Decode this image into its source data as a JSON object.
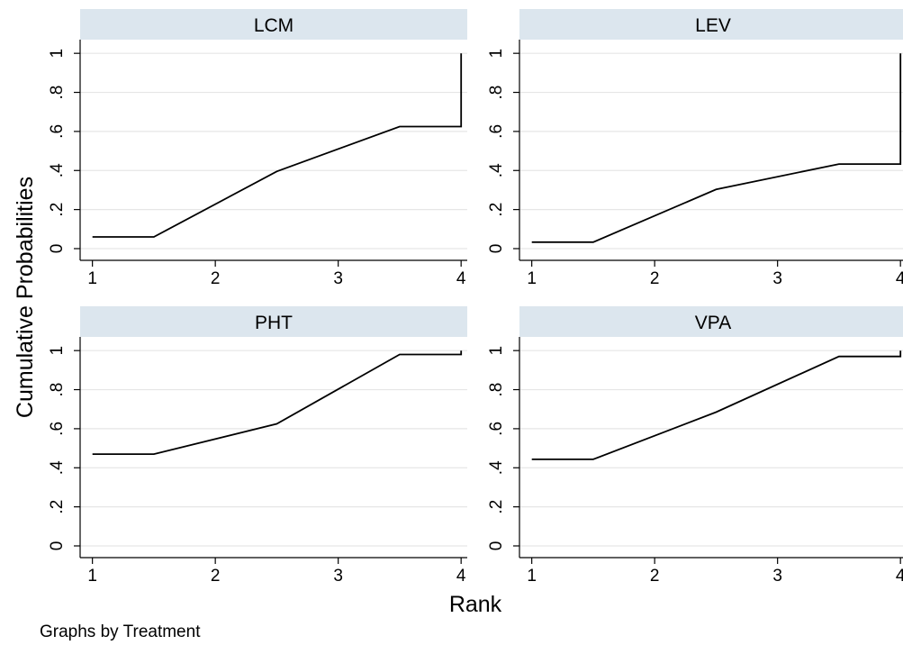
{
  "chart_data": {
    "type": "line",
    "layout": "2x2 small multiples",
    "xlabel": "Rank",
    "ylabel": "Cumulative Probabilities",
    "note": "Graphs by Treatment",
    "x_ticks": [
      "1",
      "2",
      "3",
      "4"
    ],
    "y_ticks": [
      "0",
      ".2",
      ".4",
      ".6",
      ".8",
      "1"
    ],
    "xlim": [
      0.9,
      4.05
    ],
    "ylim": [
      -0.06,
      1.07
    ],
    "grid": true,
    "colors": {
      "line": "#000000",
      "strip": "#dce6ee",
      "grid": "#e6e6e6"
    },
    "panels": [
      {
        "title": "LCM",
        "points": [
          [
            1,
            0.06
          ],
          [
            1.5,
            0.06
          ],
          [
            2.5,
            0.395
          ],
          [
            3.5,
            0.625
          ],
          [
            4,
            0.625
          ],
          [
            4,
            1.0
          ]
        ]
      },
      {
        "title": "LEV",
        "points": [
          [
            1,
            0.033
          ],
          [
            1.5,
            0.033
          ],
          [
            2.5,
            0.303
          ],
          [
            3.5,
            0.433
          ],
          [
            4,
            0.433
          ],
          [
            4,
            1.0
          ]
        ]
      },
      {
        "title": "PHT",
        "points": [
          [
            1,
            0.47
          ],
          [
            1.5,
            0.47
          ],
          [
            2.5,
            0.625
          ],
          [
            3.5,
            0.98
          ],
          [
            4,
            0.98
          ],
          [
            4,
            1.0
          ]
        ]
      },
      {
        "title": "VPA",
        "points": [
          [
            1,
            0.443
          ],
          [
            1.5,
            0.443
          ],
          [
            2.5,
            0.685
          ],
          [
            3.5,
            0.97
          ],
          [
            4,
            0.97
          ],
          [
            4,
            1.0
          ]
        ]
      }
    ]
  }
}
